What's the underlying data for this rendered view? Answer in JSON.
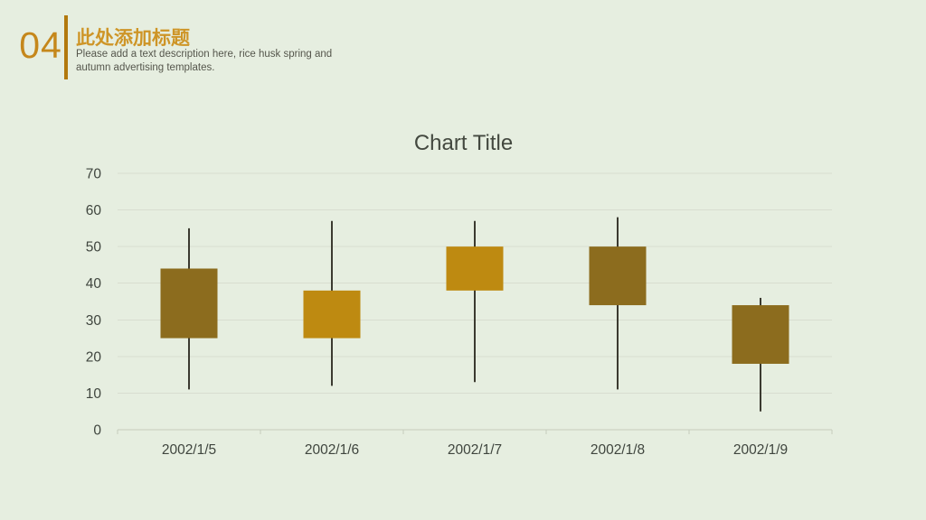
{
  "slide": {
    "background": "#E6EEE0",
    "header": {
      "number": "04",
      "title": "此处添加标题",
      "subtitle_line1": "Please add a text description here, rice husk spring and",
      "subtitle_line2": "autumn advertising templates.",
      "colors": {
        "number": "#C5871B",
        "divider": "#B2790E",
        "title": "#CE9527",
        "subtitle": "#55564C"
      }
    }
  },
  "chart_data": {
    "type": "candlestick",
    "title": "Chart Title",
    "categories": [
      "2002/1/5",
      "2002/1/6",
      "2002/1/7",
      "2002/1/8",
      "2002/1/9"
    ],
    "series": [
      {
        "name": "open",
        "values": [
          44,
          25,
          38,
          50,
          34
        ]
      },
      {
        "name": "high",
        "values": [
          55,
          57,
          57,
          58,
          36
        ]
      },
      {
        "name": "low",
        "values": [
          11,
          12,
          13,
          11,
          5
        ]
      },
      {
        "name": "close",
        "values": [
          25,
          38,
          50,
          34,
          18
        ]
      }
    ],
    "ylim": [
      0,
      70
    ],
    "yticks": [
      70,
      60,
      50,
      40,
      30,
      20,
      10,
      0
    ],
    "grid": true,
    "legend": false,
    "colors": {
      "up": "#BE8A11",
      "down": "#8C6C1E",
      "wick": "#3B3A30",
      "gridline": "#D8DDD0",
      "axis_line": "#C6CCBD",
      "label": "#3F453E",
      "title": "#43483F"
    }
  }
}
